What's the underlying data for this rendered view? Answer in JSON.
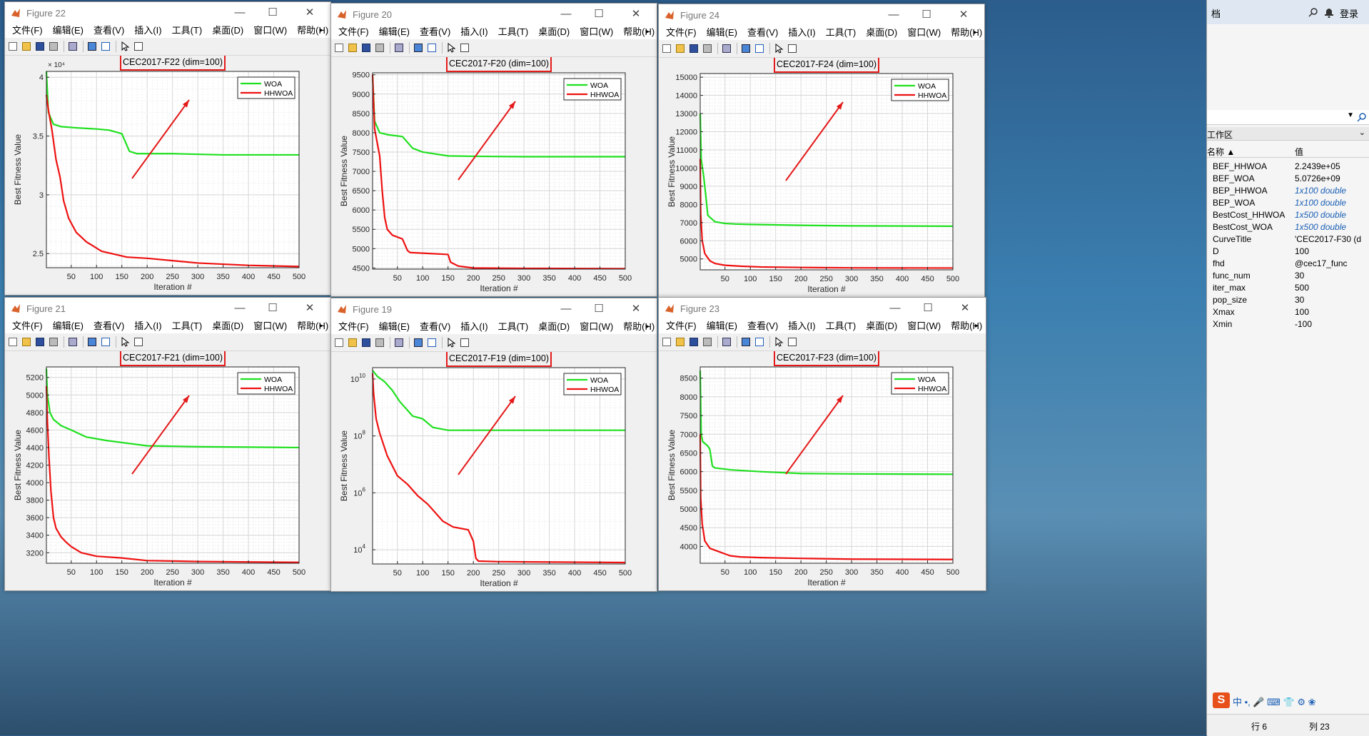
{
  "menus": [
    "文件(F)",
    "编辑(E)",
    "查看(V)",
    "插入(I)",
    "工具(T)",
    "桌面(D)",
    "窗口(W)",
    "帮助(H)"
  ],
  "legend": [
    "WOA",
    "HHWOA"
  ],
  "colors": {
    "woa": "#1fe01f",
    "hhwoa": "#ee1111",
    "annot": "#e41a1a"
  },
  "figures": [
    {
      "id": "f22",
      "window_title": "Figure 22",
      "chart_title": "CEC2017-F22 (dim=100)",
      "ylabel": "Best Fitness Value",
      "xlabel": "Iteration #",
      "exponent": "× 10⁴",
      "active": false
    },
    {
      "id": "f20",
      "window_title": "Figure 20",
      "chart_title": "CEC2017-F20 (dim=100)",
      "ylabel": "Best Fitness Value",
      "xlabel": "Iteration #",
      "exponent": "",
      "active": false
    },
    {
      "id": "f24",
      "window_title": "Figure 24",
      "chart_title": "CEC2017-F24 (dim=100)",
      "ylabel": "Best Fitness Value",
      "xlabel": "Iteration #",
      "exponent": "",
      "active": false
    },
    {
      "id": "f21",
      "window_title": "Figure 21",
      "chart_title": "CEC2017-F21 (dim=100)",
      "ylabel": "Best Fitness Value",
      "xlabel": "Iteration #",
      "exponent": "",
      "active": false
    },
    {
      "id": "f19",
      "window_title": "Figure 19",
      "chart_title": "CEC2017-F19 (dim=100)",
      "ylabel": "Best Fitness Value",
      "xlabel": "Iteration #",
      "exponent": "",
      "active": false
    },
    {
      "id": "f23",
      "window_title": "Figure 23",
      "chart_title": "CEC2017-F23 (dim=100)",
      "ylabel": "Best Fitness Value",
      "xlabel": "Iteration #",
      "exponent": "",
      "active": true
    }
  ],
  "workspace": {
    "search_text": "档",
    "login": "登录",
    "section": "工作区",
    "col_name": "名称 ▲",
    "col_value": "值",
    "vars": [
      {
        "name": "BEF_HHWOA",
        "value": "2.2439e+05",
        "italic": false
      },
      {
        "name": "BEF_WOA",
        "value": "5.0726e+09",
        "italic": false
      },
      {
        "name": "BEP_HHWOA",
        "value": "1x100 double",
        "italic": true
      },
      {
        "name": "BEP_WOA",
        "value": "1x100 double",
        "italic": true
      },
      {
        "name": "BestCost_HHWOA",
        "value": "1x500 double",
        "italic": true
      },
      {
        "name": "BestCost_WOA",
        "value": "1x500 double",
        "italic": true
      },
      {
        "name": "CurveTitle",
        "value": "'CEC2017-F30 (d",
        "italic": false
      },
      {
        "name": "D",
        "value": "100",
        "italic": false
      },
      {
        "name": "fhd",
        "value": "@cec17_func",
        "italic": false
      },
      {
        "name": "func_num",
        "value": "30",
        "italic": false
      },
      {
        "name": "iter_max",
        "value": "500",
        "italic": false
      },
      {
        "name": "pop_size",
        "value": "30",
        "italic": false
      },
      {
        "name": "Xmax",
        "value": "100",
        "italic": false
      },
      {
        "name": "Xmin",
        "value": "-100",
        "italic": false
      }
    ],
    "status_row": "行 6",
    "status_col": "列 23"
  },
  "chart_data": [
    {
      "type": "line",
      "id": "f22",
      "title": "CEC2017-F22 (dim=100)",
      "xlabel": "Iteration #",
      "ylabel": "Best Fitness Value",
      "xlim": [
        1,
        500
      ],
      "ylim": [
        23800,
        40500
      ],
      "y_scale": "linear",
      "y_multiplier": "× 10⁴",
      "grid": true,
      "legend": "top-right",
      "xticks": [
        50,
        100,
        150,
        200,
        250,
        300,
        350,
        400,
        450,
        500
      ],
      "yticks": [
        {
          "v": 25000,
          "l": "2.5"
        },
        {
          "v": 30000,
          "l": "3"
        },
        {
          "v": 35000,
          "l": "3.5"
        },
        {
          "v": 40000,
          "l": "4"
        }
      ],
      "series": [
        {
          "name": "WOA",
          "x": [
            1,
            5,
            15,
            30,
            60,
            100,
            125,
            150,
            165,
            180,
            250,
            350,
            500
          ],
          "y": [
            40500,
            37000,
            36000,
            35800,
            35700,
            35600,
            35500,
            35200,
            33700,
            33500,
            33500,
            33400,
            33400
          ]
        },
        {
          "name": "HHWOA",
          "x": [
            1,
            5,
            12,
            20,
            28,
            35,
            45,
            60,
            80,
            110,
            160,
            200,
            250,
            300,
            400,
            500
          ],
          "y": [
            38500,
            37200,
            35500,
            33000,
            31500,
            29500,
            28000,
            26800,
            26000,
            25200,
            24700,
            24600,
            24400,
            24200,
            24000,
            23900
          ]
        }
      ]
    },
    {
      "type": "line",
      "id": "f20",
      "title": "CEC2017-F20 (dim=100)",
      "xlabel": "Iteration #",
      "ylabel": "Best Fitness Value",
      "xlim": [
        1,
        500
      ],
      "ylim": [
        4470,
        9550
      ],
      "y_scale": "linear",
      "y_multiplier": "",
      "grid": true,
      "legend": "top-right",
      "xticks": [
        50,
        100,
        150,
        200,
        250,
        300,
        350,
        400,
        450,
        500
      ],
      "yticks": [
        {
          "v": 4500,
          "l": "4500"
        },
        {
          "v": 5000,
          "l": "5000"
        },
        {
          "v": 5500,
          "l": "5500"
        },
        {
          "v": 6000,
          "l": "6000"
        },
        {
          "v": 6500,
          "l": "6500"
        },
        {
          "v": 7000,
          "l": "7000"
        },
        {
          "v": 7500,
          "l": "7500"
        },
        {
          "v": 8000,
          "l": "8000"
        },
        {
          "v": 8500,
          "l": "8500"
        },
        {
          "v": 9000,
          "l": "9000"
        },
        {
          "v": 9500,
          "l": "9500"
        }
      ],
      "series": [
        {
          "name": "WOA",
          "x": [
            1,
            5,
            15,
            30,
            60,
            70,
            80,
            100,
            110,
            150,
            200,
            300,
            500
          ],
          "y": [
            9500,
            8300,
            8000,
            7950,
            7900,
            7750,
            7600,
            7500,
            7480,
            7400,
            7390,
            7380,
            7380
          ]
        },
        {
          "name": "HHWOA",
          "x": [
            1,
            5,
            15,
            20,
            25,
            30,
            40,
            50,
            60,
            70,
            75,
            150,
            155,
            170,
            200,
            300,
            500
          ],
          "y": [
            9500,
            8100,
            7400,
            6500,
            5800,
            5500,
            5350,
            5300,
            5250,
            4950,
            4900,
            4850,
            4650,
            4550,
            4500,
            4490,
            4480
          ]
        }
      ]
    },
    {
      "type": "line",
      "id": "f24",
      "title": "CEC2017-F24 (dim=100)",
      "xlabel": "Iteration #",
      "ylabel": "Best Fitness Value",
      "xlim": [
        1,
        500
      ],
      "ylim": [
        4400,
        15200
      ],
      "y_scale": "linear",
      "y_multiplier": "",
      "grid": true,
      "legend": "top-right",
      "xticks": [
        50,
        100,
        150,
        200,
        250,
        300,
        350,
        400,
        450,
        500
      ],
      "yticks": [
        {
          "v": 5000,
          "l": "5000"
        },
        {
          "v": 6000,
          "l": "6000"
        },
        {
          "v": 7000,
          "l": "7000"
        },
        {
          "v": 8000,
          "l": "8000"
        },
        {
          "v": 9000,
          "l": "9000"
        },
        {
          "v": 10000,
          "l": "10000"
        },
        {
          "v": 11000,
          "l": "11000"
        },
        {
          "v": 12000,
          "l": "12000"
        },
        {
          "v": 13000,
          "l": "13000"
        },
        {
          "v": 14000,
          "l": "14000"
        },
        {
          "v": 15000,
          "l": "15000"
        }
      ],
      "series": [
        {
          "name": "WOA",
          "x": [
            1,
            3,
            8,
            12,
            16,
            20,
            30,
            50,
            70,
            100,
            200,
            300,
            500
          ],
          "y": [
            13000,
            10500,
            9500,
            8500,
            7400,
            7300,
            7050,
            6950,
            6920,
            6900,
            6850,
            6820,
            6800
          ]
        },
        {
          "name": "HHWOA",
          "x": [
            1,
            2,
            5,
            10,
            20,
            30,
            50,
            80,
            120,
            200,
            300,
            500
          ],
          "y": [
            10500,
            7500,
            6000,
            5300,
            4900,
            4750,
            4650,
            4600,
            4560,
            4530,
            4510,
            4500
          ]
        }
      ]
    },
    {
      "type": "line",
      "id": "f21",
      "title": "CEC2017-F21 (dim=100)",
      "xlabel": "Iteration #",
      "ylabel": "Best Fitness Value",
      "xlim": [
        1,
        500
      ],
      "ylim": [
        3080,
        5320
      ],
      "y_scale": "linear",
      "y_multiplier": "",
      "grid": true,
      "legend": "top-right",
      "xticks": [
        50,
        100,
        150,
        200,
        250,
        300,
        350,
        400,
        450,
        500
      ],
      "yticks": [
        {
          "v": 3200,
          "l": "3200"
        },
        {
          "v": 3400,
          "l": "3400"
        },
        {
          "v": 3600,
          "l": "3600"
        },
        {
          "v": 3800,
          "l": "3800"
        },
        {
          "v": 4000,
          "l": "4000"
        },
        {
          "v": 4200,
          "l": "4200"
        },
        {
          "v": 4400,
          "l": "4400"
        },
        {
          "v": 4600,
          "l": "4600"
        },
        {
          "v": 4800,
          "l": "4800"
        },
        {
          "v": 5000,
          "l": "5000"
        },
        {
          "v": 5200,
          "l": "5200"
        }
      ],
      "series": [
        {
          "name": "WOA",
          "x": [
            1,
            3,
            8,
            15,
            30,
            50,
            80,
            120,
            160,
            200,
            300,
            500
          ],
          "y": [
            5300,
            5000,
            4800,
            4720,
            4650,
            4600,
            4520,
            4480,
            4450,
            4420,
            4410,
            4400
          ]
        },
        {
          "name": "HHWOA",
          "x": [
            1,
            3,
            6,
            10,
            15,
            20,
            30,
            40,
            50,
            70,
            100,
            150,
            200,
            300,
            500
          ],
          "y": [
            5100,
            4700,
            4300,
            3900,
            3600,
            3480,
            3380,
            3320,
            3270,
            3200,
            3160,
            3140,
            3110,
            3100,
            3090
          ]
        }
      ]
    },
    {
      "type": "line",
      "id": "f19",
      "title": "CEC2017-F19 (dim=100)",
      "xlabel": "Iteration #",
      "ylabel": "Best Fitness Value",
      "xlim": [
        1,
        500
      ],
      "ylim": [
        3.5,
        10.4
      ],
      "y_scale": "log",
      "y_value_unit": "log10",
      "y_multiplier": "",
      "grid": true,
      "legend": "top-right",
      "xticks": [
        50,
        100,
        150,
        200,
        250,
        300,
        350,
        400,
        450,
        500
      ],
      "yticks": [
        {
          "v": 4,
          "l": "10",
          "e": "4"
        },
        {
          "v": 6,
          "l": "10",
          "e": "6"
        },
        {
          "v": 8,
          "l": "10",
          "e": "8"
        },
        {
          "v": 10,
          "l": "10",
          "e": "10"
        }
      ],
      "series": [
        {
          "name": "WOA",
          "x": [
            1,
            10,
            25,
            40,
            55,
            70,
            80,
            100,
            120,
            150,
            200,
            300,
            500
          ],
          "y": [
            10.3,
            10.1,
            9.9,
            9.6,
            9.2,
            8.9,
            8.7,
            8.6,
            8.3,
            8.2,
            8.2,
            8.2,
            8.2
          ]
        },
        {
          "name": "HHWOA",
          "x": [
            1,
            3,
            8,
            15,
            30,
            50,
            70,
            90,
            110,
            140,
            160,
            190,
            200,
            205,
            210,
            250,
            500
          ],
          "y": [
            10.2,
            9.5,
            8.6,
            8.1,
            7.3,
            6.6,
            6.3,
            5.9,
            5.6,
            5.0,
            4.8,
            4.7,
            4.3,
            3.7,
            3.6,
            3.58,
            3.55
          ]
        }
      ]
    },
    {
      "type": "line",
      "id": "f23",
      "title": "CEC2017-F23 (dim=100)",
      "xlabel": "Iteration #",
      "ylabel": "Best Fitness Value",
      "xlim": [
        1,
        500
      ],
      "ylim": [
        3550,
        8800
      ],
      "y_scale": "linear",
      "y_multiplier": "",
      "grid": true,
      "legend": "top-right",
      "xticks": [
        50,
        100,
        150,
        200,
        250,
        300,
        350,
        400,
        450,
        500
      ],
      "yticks": [
        {
          "v": 4000,
          "l": "4000"
        },
        {
          "v": 4500,
          "l": "4500"
        },
        {
          "v": 5000,
          "l": "5000"
        },
        {
          "v": 5500,
          "l": "5500"
        },
        {
          "v": 6000,
          "l": "6000"
        },
        {
          "v": 6500,
          "l": "6500"
        },
        {
          "v": 7000,
          "l": "7000"
        },
        {
          "v": 7500,
          "l": "7500"
        },
        {
          "v": 8000,
          "l": "8000"
        },
        {
          "v": 8500,
          "l": "8500"
        }
      ],
      "series": [
        {
          "name": "WOA",
          "x": [
            1,
            3,
            6,
            15,
            20,
            25,
            30,
            60,
            120,
            200,
            300,
            500
          ],
          "y": [
            8700,
            7000,
            6800,
            6700,
            6600,
            6150,
            6100,
            6050,
            6000,
            5950,
            5940,
            5930
          ]
        },
        {
          "name": "HHWOA",
          "x": [
            1,
            2,
            5,
            10,
            20,
            40,
            60,
            80,
            120,
            200,
            300,
            500
          ],
          "y": [
            7000,
            5300,
            4600,
            4150,
            3950,
            3850,
            3750,
            3720,
            3700,
            3680,
            3660,
            3650
          ]
        }
      ]
    }
  ]
}
